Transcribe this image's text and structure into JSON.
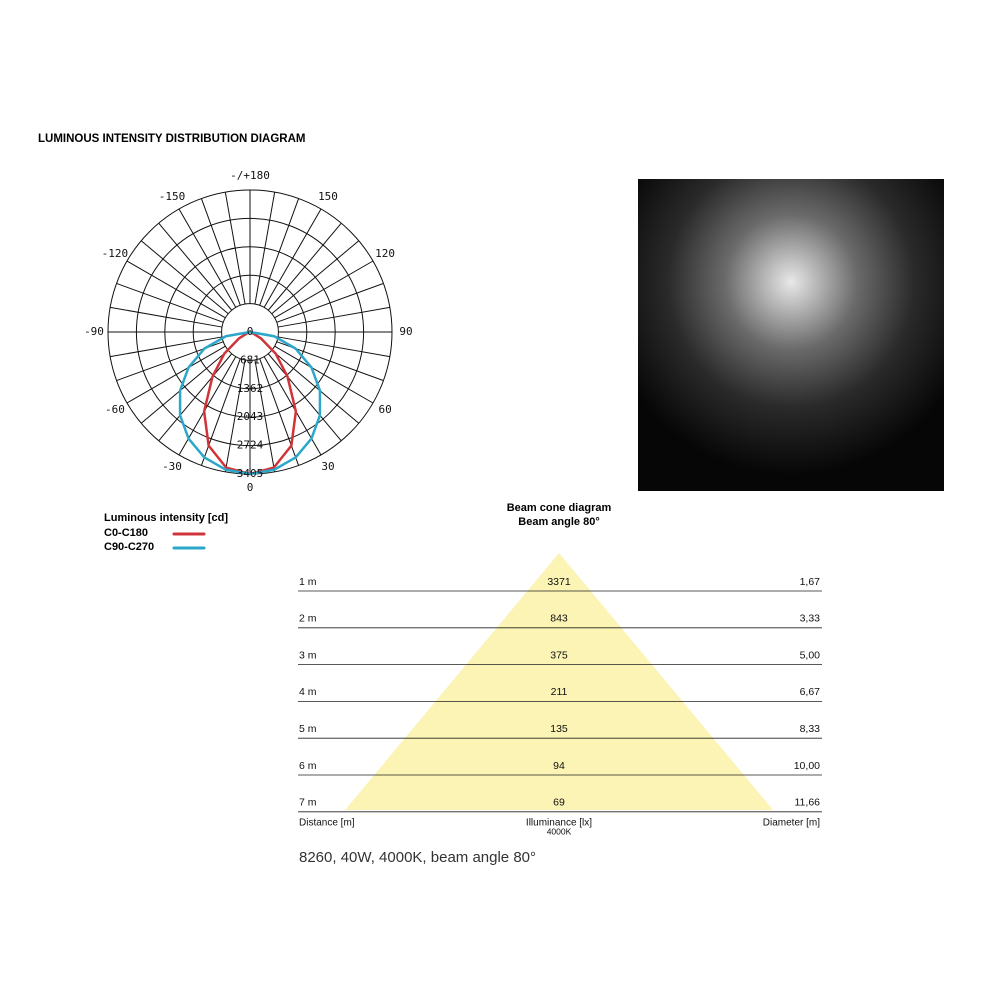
{
  "title": "LUMINOUS INTENSITY DISTRIBUTION DIAGRAM",
  "chart_data": {
    "type": "polar",
    "legend_title": "Luminous intensity [cd]",
    "angles": [
      -90,
      -80,
      -70,
      -60,
      -50,
      -40,
      -30,
      -20,
      -10,
      0,
      10,
      20,
      30,
      40,
      50,
      60,
      70,
      80,
      90
    ],
    "series": [
      {
        "name": "C0-C180",
        "color": "#d13438",
        "values": [
          0,
          0,
          50,
          300,
          800,
          1400,
          2200,
          2900,
          3300,
          3405,
          3300,
          2900,
          2200,
          1400,
          800,
          300,
          50,
          0,
          0
        ]
      },
      {
        "name": "C90-C270",
        "color": "#2aa7c9",
        "values": [
          0,
          591,
          1165,
          1703,
          2189,
          2608,
          2949,
          3200,
          3353,
          3405,
          3353,
          3200,
          2949,
          2608,
          2189,
          1703,
          1165,
          591,
          0
        ]
      }
    ],
    "rlim": [
      0,
      3405
    ],
    "rticks": [
      0,
      681,
      1362,
      2043,
      2724,
      3405
    ],
    "angle_ticks": [
      0,
      30,
      60,
      90,
      120,
      150,
      {
        "value": 180,
        "label": "-/+180"
      },
      -150,
      -120,
      -90,
      -60,
      -30
    ]
  },
  "beam_cone": {
    "title": "Beam cone diagram",
    "subtitle": "Beam angle 80°",
    "rows": [
      [
        "1 m",
        "3371",
        "1,67"
      ],
      [
        "2 m",
        "843",
        "3,33"
      ],
      [
        "3 m",
        "375",
        "5,00"
      ],
      [
        "4 m",
        "211",
        "6,67"
      ],
      [
        "5 m",
        "135",
        "8,33"
      ],
      [
        "6 m",
        "94",
        "10,00"
      ],
      [
        "7 m",
        "69",
        "11,66"
      ]
    ],
    "columns": [
      "Distance [m]",
      "Illuminance [lx]",
      "Diameter [m]"
    ],
    "column_note": "4000K"
  },
  "caption": "8260, 40W, 4000K, beam angle 80°"
}
